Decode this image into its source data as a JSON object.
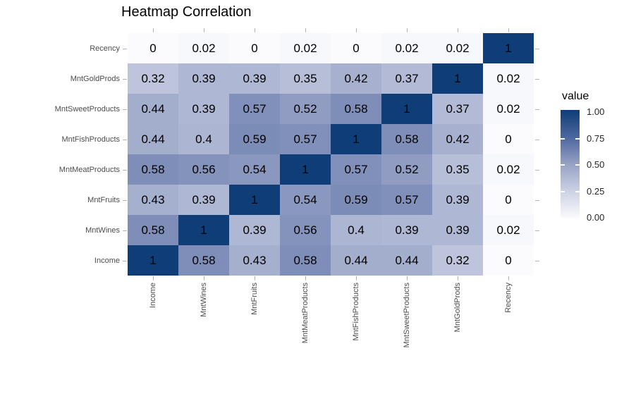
{
  "title": "Heatmap Correlation",
  "legend": {
    "title": "value",
    "tick_labels": [
      "1.00",
      "0.75",
      "0.50",
      "0.25",
      "0.00"
    ],
    "tick_values": [
      1,
      0.75,
      0.5,
      0.25,
      0
    ]
  },
  "chart_data": {
    "type": "heatmap",
    "title": "Heatmap Correlation",
    "legend_title": "value",
    "legend_position": "right",
    "value_range": [
      0,
      1
    ],
    "x_categories": [
      "Income",
      "MntWines",
      "MntFruits",
      "MntMeatProducts",
      "MntFishProducts",
      "MntSweetProducts",
      "MntGoldProds",
      "Recency"
    ],
    "y_categories_top_to_bottom": [
      "Recency",
      "MntGoldProds",
      "MntSweetProducts",
      "MntFishProducts",
      "MntMeatProducts",
      "MntFruits",
      "MntWines",
      "Income"
    ],
    "values_rows_top_to_bottom": [
      [
        "0",
        "0.02",
        "0",
        "0.02",
        "0",
        "0.02",
        "0.02",
        "1"
      ],
      [
        "0.32",
        "0.39",
        "0.39",
        "0.35",
        "0.42",
        "0.37",
        "1",
        "0.02"
      ],
      [
        "0.44",
        "0.39",
        "0.57",
        "0.52",
        "0.58",
        "1",
        "0.37",
        "0.02"
      ],
      [
        "0.44",
        "0.4",
        "0.59",
        "0.57",
        "1",
        "0.58",
        "0.42",
        "0"
      ],
      [
        "0.58",
        "0.56",
        "0.54",
        "1",
        "0.57",
        "0.52",
        "0.35",
        "0.02"
      ],
      [
        "0.43",
        "0.39",
        "1",
        "0.54",
        "0.59",
        "0.57",
        "0.39",
        "0"
      ],
      [
        "0.58",
        "1",
        "0.39",
        "0.56",
        "0.4",
        "0.39",
        "0.39",
        "0.02"
      ],
      [
        "1",
        "0.58",
        "0.43",
        "0.58",
        "0.44",
        "0.44",
        "0.32",
        "0"
      ]
    ],
    "colorscale": {
      "stops": [
        {
          "at": 0,
          "color": "#fbfbfd"
        },
        {
          "at": 0.25,
          "color": "#ccd2e4"
        },
        {
          "at": 0.5,
          "color": "#96a1c5"
        },
        {
          "at": 0.75,
          "color": "#4c669e"
        },
        {
          "at": 1,
          "color": "#0e3d78"
        }
      ]
    }
  }
}
